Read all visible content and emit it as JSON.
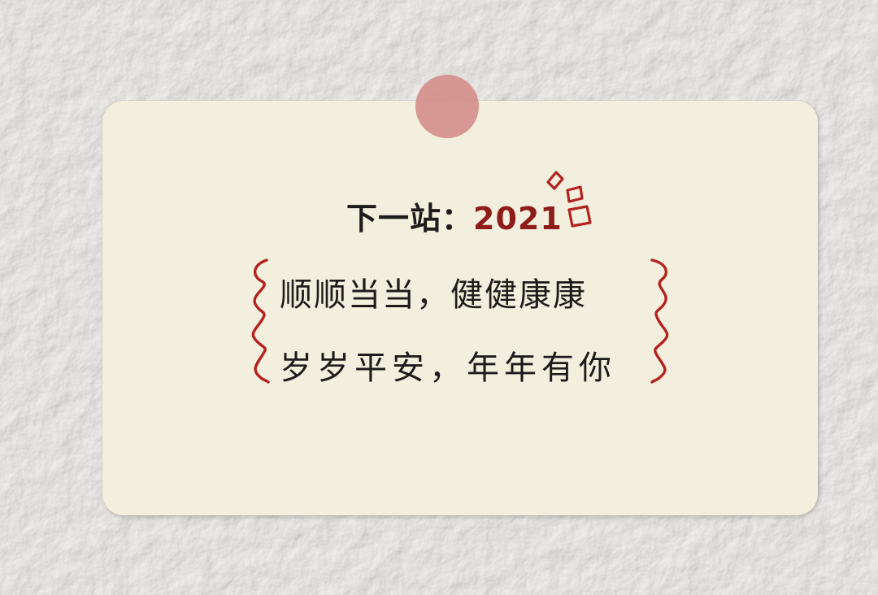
{
  "card": {
    "title_prefix": "下一站：",
    "title_year": "2021",
    "lines": [
      "顺顺当当，健健康康",
      "岁岁平安，年年有你"
    ]
  },
  "colors": {
    "wall": "#ecebe8",
    "card": "#f3efdf",
    "tape": "#d58f8b",
    "ink": "#1d1c1a",
    "red_ink": "#b3221e"
  },
  "decorations": [
    "washi-tape-dot",
    "sparkle-icon",
    "wavy-bracket-left",
    "wavy-bracket-right"
  ]
}
